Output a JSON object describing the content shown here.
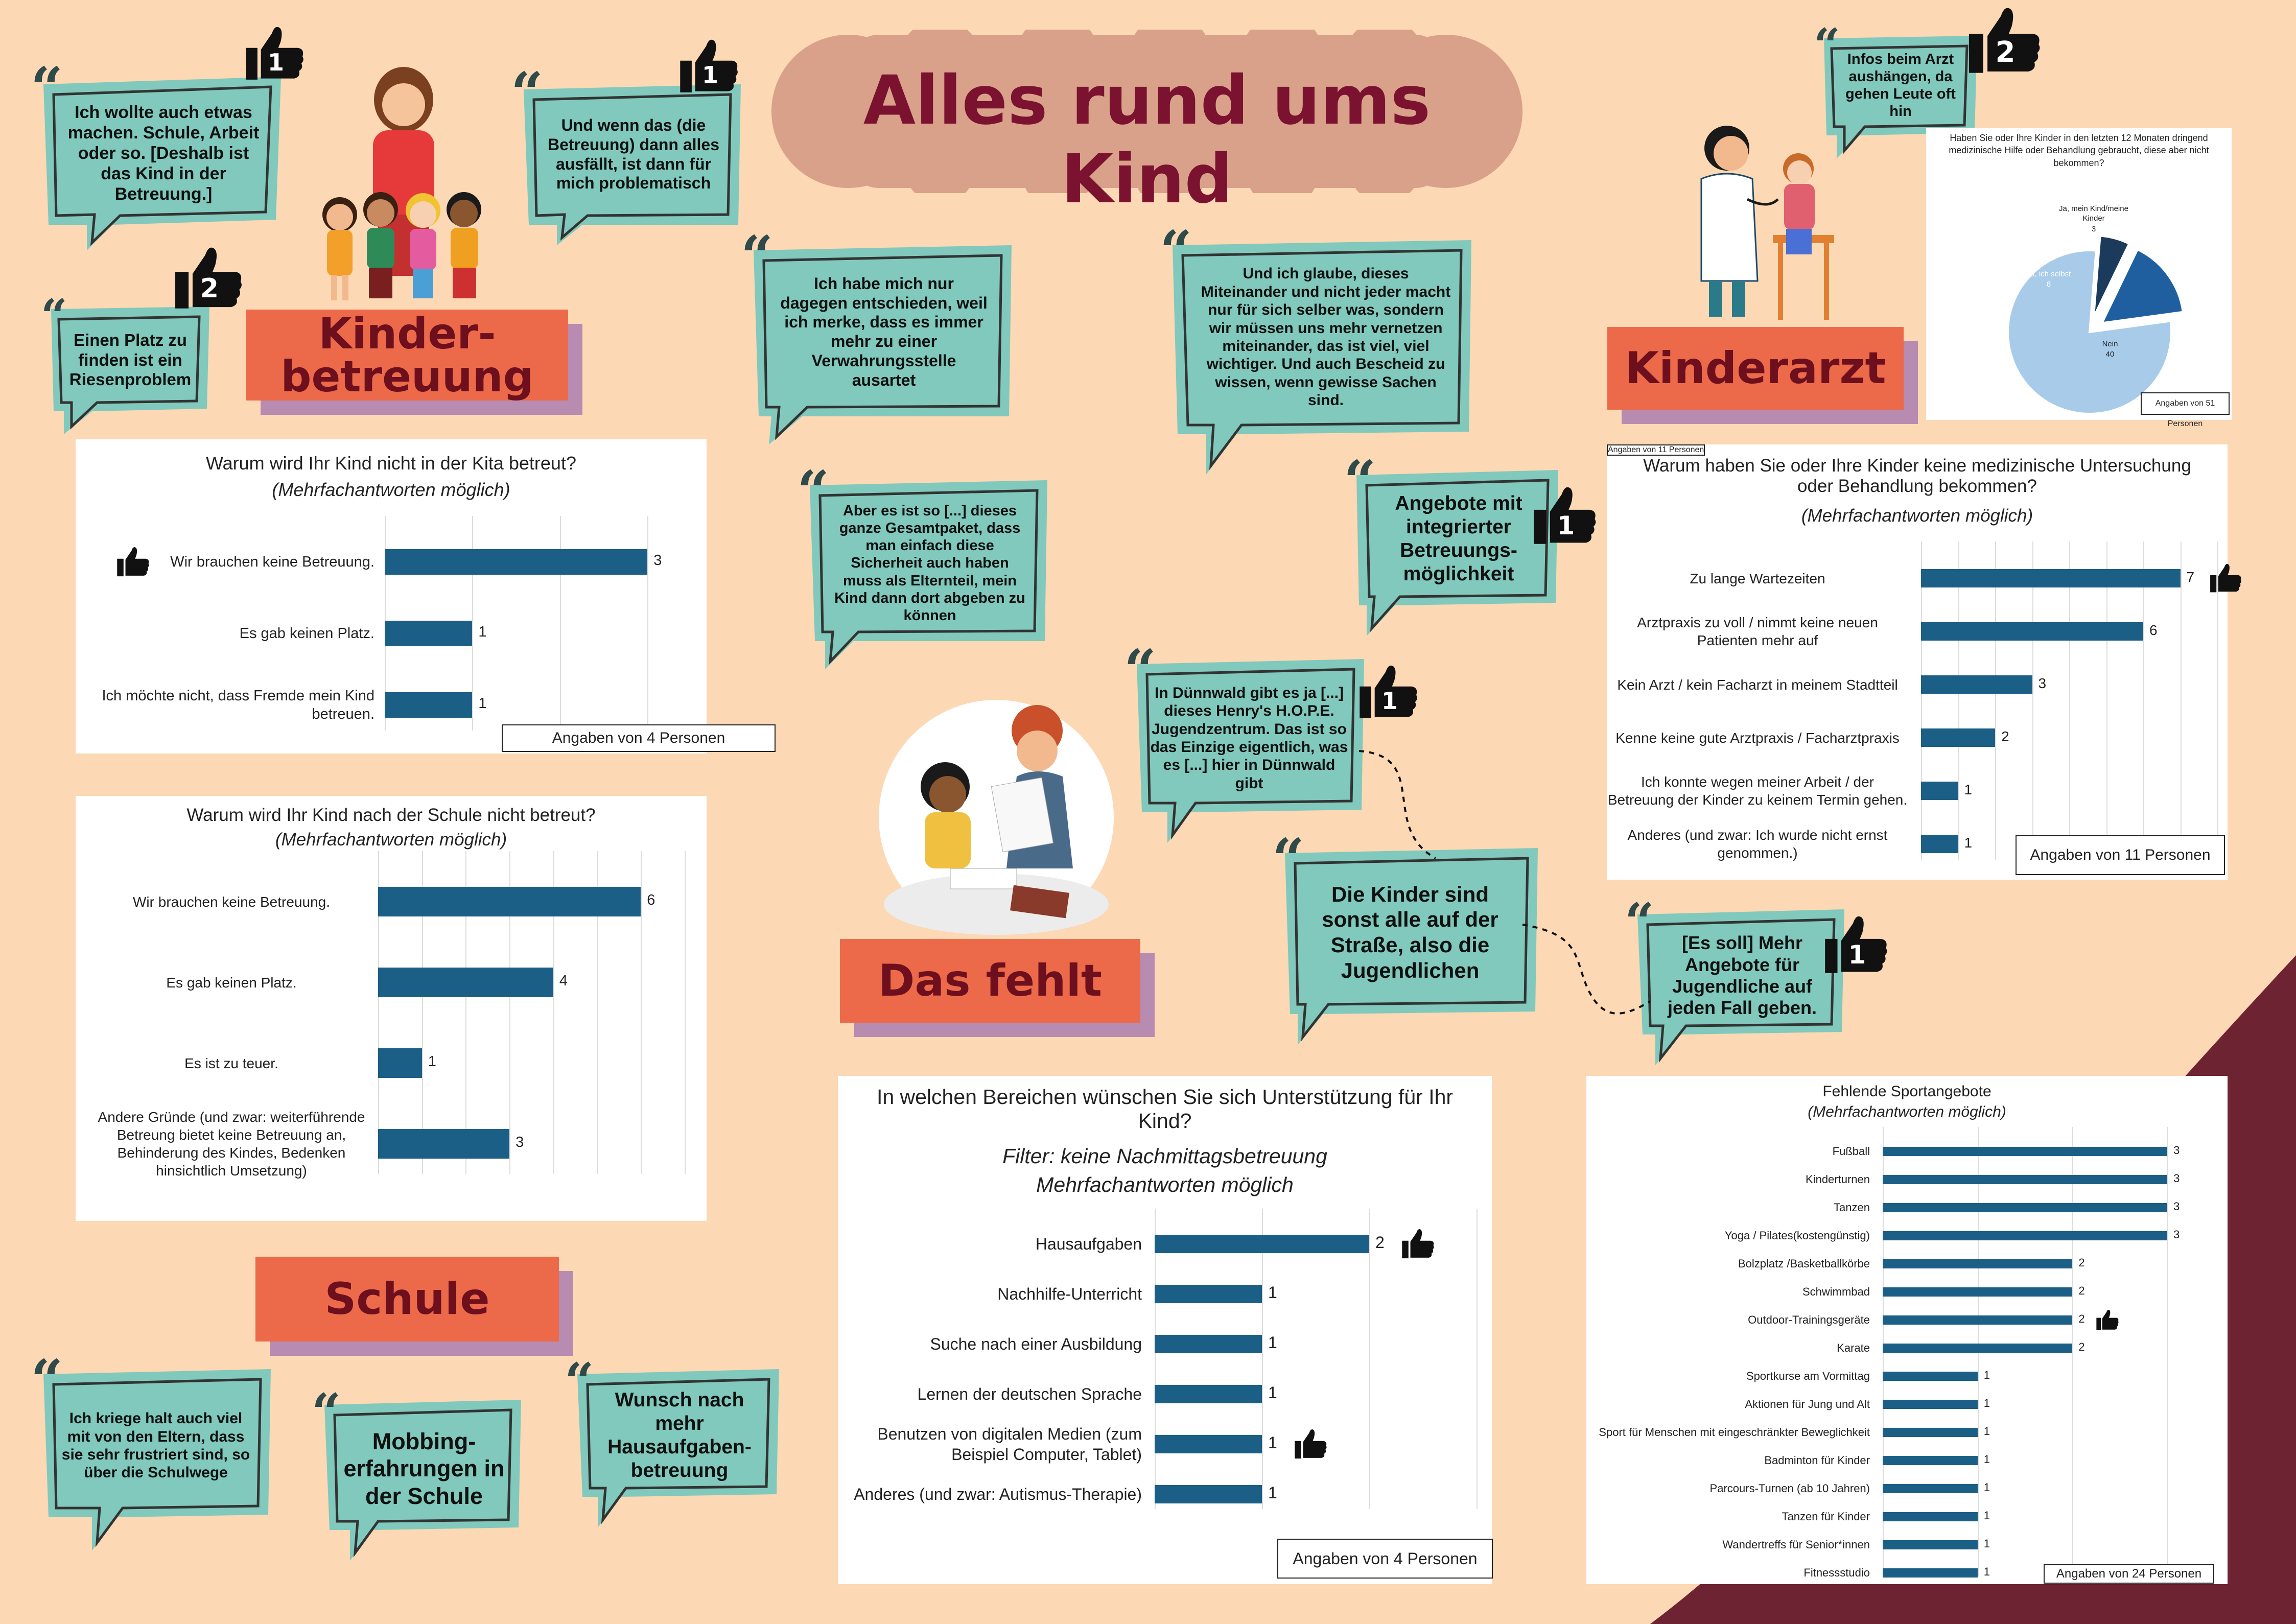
{
  "page_title": "Alles rund ums Kind",
  "colors": {
    "background": "#fcd8b4",
    "accent_dark": "#7a1230",
    "bubble": "#80c9bc",
    "label": "#ec6a4a",
    "bar": "#1c5f86"
  },
  "sections": {
    "kinderbetreuung": "Kinder-\nbetreuung",
    "kinderarzt": "Kinderarzt",
    "das_fehlt": "Das fehlt",
    "schule": "Schule"
  },
  "quotes": {
    "q1": "Ich wollte auch etwas machen. Schule, Arbeit oder so. [Deshalb ist das Kind in der Betreuung.]",
    "q2": "Und wenn das (die Betreuung) dann alles ausfällt, ist dann für mich problematisch",
    "q3": "Einen Platz zu finden ist ein Riesenproblem",
    "q4": "Ich habe mich nur dagegen  entschieden, weil ich merke, dass es immer mehr zu einer Verwahrungsstelle ausartet",
    "q5": "Und ich glaube, dieses Miteinander und nicht jeder macht nur für sich selber was, sondern wir müssen uns mehr vernetzen miteinander, das ist viel, viel wichtiger. Und auch Bescheid zu wissen, wenn gewisse Sachen sind.",
    "q6": "Aber es ist so [...] dieses ganze Gesamtpaket, dass man einfach diese Sicherheit auch haben muss als Elternteil, mein Kind dann dort abgeben zu können",
    "q7": "Angebote mit integrierter Betreuungs-möglichkeit",
    "q8": "Infos beim Arzt aushängen, da gehen Leute oft hin",
    "q9": "In Dünnwald gibt es ja [...] dieses Henry's H.O.P.E. Jugendzentrum. Das ist so das Einzige eigentlich, was es [...] hier in Dünnwald gibt",
    "q10": "Die Kinder sind sonst alle auf der Straße, also die Jugendlichen",
    "q11": "[Es soll] Mehr Angebote für Jugendliche auf jeden Fall geben.",
    "q12": "Ich kriege halt auch viel mit von den Eltern, dass sie sehr frustriert sind, so über die Schulwege",
    "q13": "Mobbing-erfahrungen in der Schule",
    "q14": "Wunsch nach mehr Hausaufgaben-betreuung"
  },
  "likes": {
    "q1": "1",
    "q2": "1",
    "q3": "2",
    "q7": "1",
    "q8": "2",
    "q9": "1",
    "q11": "1"
  },
  "chart_data": [
    {
      "type": "bar",
      "title": "Warum wird Ihr Kind nicht in der Kita betreut?",
      "subtitle": "(Mehrfachantworten möglich)",
      "categories": [
        "Wir brauchen keine Betreuung.",
        "Es gab keinen Platz.",
        "Ich möchte nicht, dass Fremde mein Kind betreuen."
      ],
      "values": [
        3,
        1,
        1
      ],
      "xlim": [
        0,
        3.5
      ],
      "note": "Angaben von 4 Personen",
      "liked": [
        true,
        false,
        false
      ]
    },
    {
      "type": "bar",
      "title": "Warum wird Ihr Kind nach der Schule nicht betreut?",
      "subtitle": "(Mehrfachantworten möglich)",
      "categories": [
        "Wir brauchen keine Betreuung.",
        "Es gab keinen Platz.",
        "Es ist zu teuer.",
        "Andere Gründe (und zwar: weiterführende Betreung bietet keine Betreuung an, Behinderung des Kindes, Bedenken hinsichtlich Umsetzung)"
      ],
      "values": [
        6,
        4,
        1,
        3
      ],
      "xlim": [
        0,
        7
      ]
    },
    {
      "type": "pie",
      "title": "Haben Sie oder Ihre Kinder in den letzten 12 Monaten dringend medizinische Hilfe oder Behandlung gebraucht, diese aber nicht bekommen?",
      "categories": [
        "Ja, mein Kind/meine Kinder",
        "Ja, ich selbst",
        "Nein"
      ],
      "values": [
        3,
        8,
        40
      ],
      "colors": [
        "#1b3a5c",
        "#1f5fa0",
        "#a8cbea"
      ],
      "note": "Angaben von 51 Personen"
    },
    {
      "type": "bar",
      "title": "Warum haben Sie oder Ihre Kinder keine medizinische Untersuchung oder Behandlung bekommen?",
      "subtitle": "(Mehrfachantworten möglich)",
      "categories": [
        "Zu lange Wartezeiten",
        "Arztpraxis zu voll / nimmt keine neuen Patienten mehr auf",
        "Kein Arzt / kein Facharzt in meinem Stadtteil",
        "Kenne keine gute Arztpraxis / Facharztpraxis",
        "Ich konnte wegen meiner Arbeit / der Betreuung der Kinder zu keinem Termin gehen.",
        "Anderes (und zwar: Ich wurde nicht ernst genommen.)"
      ],
      "values": [
        7,
        6,
        3,
        2,
        1,
        1
      ],
      "xlim": [
        0,
        8
      ],
      "note": "Angaben von 11 Personen",
      "liked": [
        true,
        false,
        false,
        false,
        false,
        false
      ]
    },
    {
      "type": "bar",
      "title": "In welchen Bereichen wünschen Sie sich Unterstützung für Ihr Kind?",
      "subtitle": "Filter: keine Nachmittagsbetreuung",
      "subtitle2": "Mehrfachantworten möglich",
      "categories": [
        "Hausaufgaben",
        "Nachhilfe-Unterricht",
        "Suche nach einer Ausbildung",
        "Lernen der deutschen Sprache",
        "Benutzen von digitalen Medien (zum Beispiel Computer, Tablet)",
        "Anderes (und zwar: Autismus-Therapie)"
      ],
      "values": [
        2,
        1,
        1,
        1,
        1,
        1
      ],
      "xlim": [
        0,
        3
      ],
      "note": "Angaben von 4 Personen",
      "liked": [
        true,
        false,
        false,
        false,
        true,
        false
      ]
    },
    {
      "type": "bar",
      "title": "Fehlende Sportangebote",
      "subtitle": "(Mehrfachantworten möglich)",
      "categories": [
        "Fußball",
        "Kinderturnen",
        "Tanzen",
        "Yoga / Pilates(kostengünstig)",
        "Bolzplatz /Basketballkörbe",
        "Schwimmbad",
        "Outdoor-Trainingsgeräte",
        "Karate",
        "Sportkurse am Vormittag",
        "Aktionen für Jung und Alt",
        "Sport für Menschen mit eingeschränkter Beweglichkeit",
        "Badminton für Kinder",
        "Parcours-Turnen (ab 10 Jahren)",
        "Tanzen für Kinder",
        "Wandertreffs für Senior*innen",
        "Fitnessstudio"
      ],
      "values": [
        3,
        3,
        3,
        3,
        2,
        2,
        2,
        2,
        1,
        1,
        1,
        1,
        1,
        1,
        1,
        1
      ],
      "xlim": [
        0,
        3.5
      ],
      "note": "Angaben von 24 Personen",
      "liked": [
        false,
        false,
        false,
        false,
        false,
        false,
        true,
        false,
        false,
        false,
        false,
        false,
        false,
        false,
        false,
        false
      ]
    }
  ]
}
